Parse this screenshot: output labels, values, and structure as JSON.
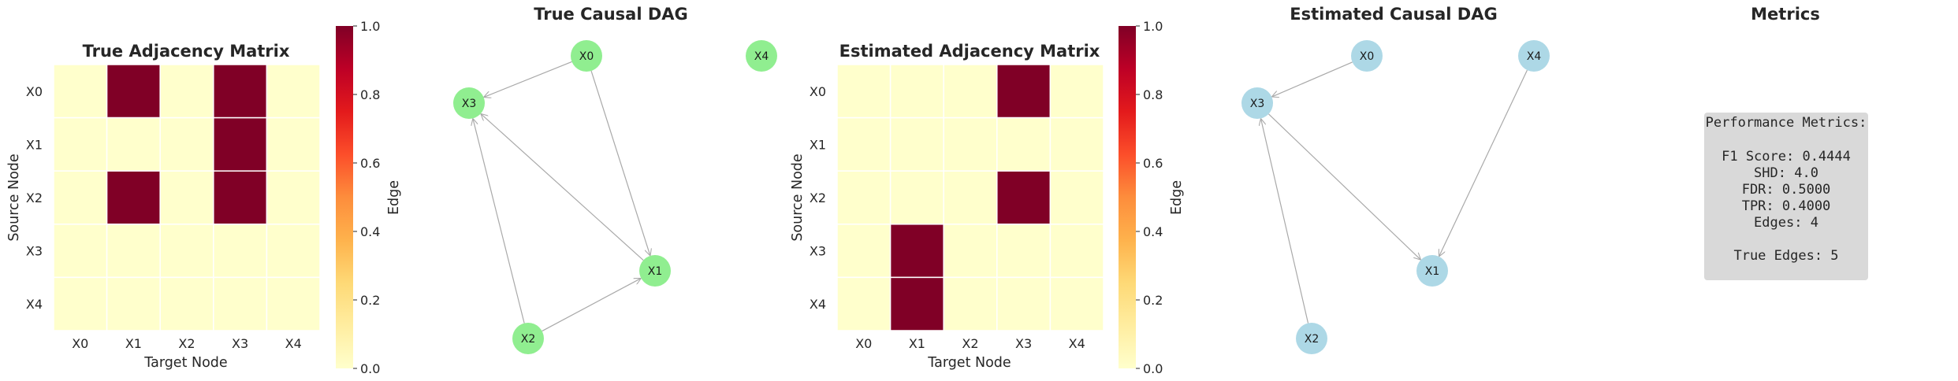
{
  "chart_data": [
    {
      "type": "heatmap",
      "title": "True Adjacency Matrix",
      "xlabel": "Target Node",
      "ylabel": "Source Node",
      "x_categories": [
        "X0",
        "X1",
        "X2",
        "X3",
        "X4"
      ],
      "y_categories": [
        "X0",
        "X1",
        "X2",
        "X3",
        "X4"
      ],
      "values": [
        [
          0,
          1,
          0,
          1,
          0
        ],
        [
          0,
          0,
          0,
          1,
          0
        ],
        [
          0,
          1,
          0,
          1,
          0
        ],
        [
          0,
          0,
          0,
          0,
          0
        ],
        [
          0,
          0,
          0,
          0,
          0
        ]
      ],
      "colorbar": {
        "label": "Edge",
        "ticks": [
          "0.0",
          "0.2",
          "0.4",
          "0.6",
          "0.8",
          "1.0"
        ],
        "range": [
          0,
          1
        ]
      }
    },
    {
      "type": "graph",
      "title": "True Causal DAG",
      "node_color": "#90ee90",
      "nodes": [
        "X0",
        "X1",
        "X2",
        "X3",
        "X4"
      ],
      "edges": [
        [
          "X0",
          "X1"
        ],
        [
          "X0",
          "X3"
        ],
        [
          "X1",
          "X3"
        ],
        [
          "X2",
          "X1"
        ],
        [
          "X2",
          "X3"
        ]
      ]
    },
    {
      "type": "heatmap",
      "title": "Estimated Adjacency Matrix",
      "xlabel": "Target Node",
      "ylabel": "Source Node",
      "x_categories": [
        "X0",
        "X1",
        "X2",
        "X3",
        "X4"
      ],
      "y_categories": [
        "X0",
        "X1",
        "X2",
        "X3",
        "X4"
      ],
      "values": [
        [
          0,
          0,
          0,
          1,
          0
        ],
        [
          0,
          0,
          0,
          0,
          0
        ],
        [
          0,
          0,
          0,
          1,
          0
        ],
        [
          0,
          1,
          0,
          0,
          0
        ],
        [
          0,
          1,
          0,
          0,
          0
        ]
      ],
      "colorbar": {
        "label": "Edge",
        "ticks": [
          "0.0",
          "0.2",
          "0.4",
          "0.6",
          "0.8",
          "1.0"
        ],
        "range": [
          0,
          1
        ]
      }
    },
    {
      "type": "graph",
      "title": "Estimated Causal DAG",
      "node_color": "#add8e6",
      "nodes": [
        "X0",
        "X1",
        "X2",
        "X3",
        "X4"
      ],
      "edges": [
        [
          "X0",
          "X3"
        ],
        [
          "X2",
          "X3"
        ],
        [
          "X3",
          "X1"
        ],
        [
          "X4",
          "X1"
        ]
      ]
    },
    {
      "type": "table",
      "title": "Metrics",
      "box_title": "Performance Metrics:",
      "rows": [
        {
          "label": "F1 Score:",
          "value": "0.4444"
        },
        {
          "label": "SHD:",
          "value": "4.0"
        },
        {
          "label": "FDR:",
          "value": "0.5000"
        },
        {
          "label": "TPR:",
          "value": "0.4000"
        },
        {
          "label": "Edges:",
          "value": "4"
        }
      ],
      "footer": "True Edges: 5"
    }
  ],
  "colors": {
    "cell_high": "#800026",
    "cell_low": "#ffffcc",
    "edge": "#a9a9a9",
    "metrics_box": "#d9d9d9"
  }
}
